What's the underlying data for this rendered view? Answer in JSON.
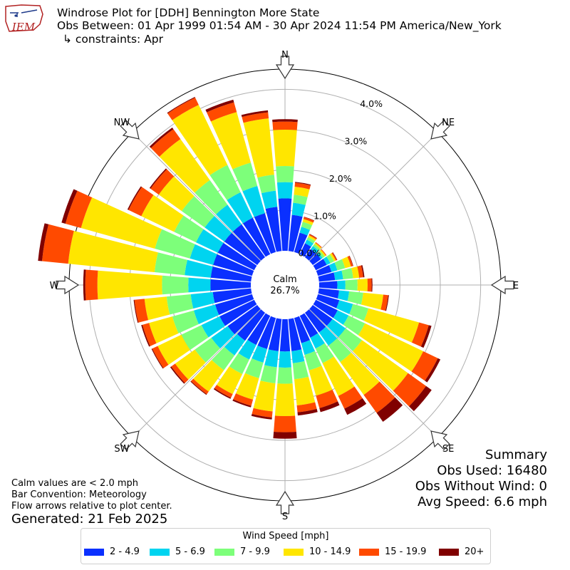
{
  "header": {
    "title": "Windrose Plot for [DDH] Bennington More State",
    "obs_between": "Obs Between: 01 Apr 1999 01:54 AM - 30 Apr 2024 11:54 PM America/New_York",
    "constraints": "↳ constraints: Apr",
    "logo_text": "IEM"
  },
  "notes": {
    "calm_note": "Calm values are < 2.0 mph",
    "bar_convention": "Bar Convention: Meteorology",
    "flow_note": "Flow arrows relative to plot center.",
    "generated": "Generated: 21 Feb 2025"
  },
  "summary": {
    "heading": "Summary",
    "obs_used": "Obs Used: 16480",
    "obs_without_wind": "Obs Without Wind: 0",
    "avg_speed": "Avg Speed: 6.6 mph"
  },
  "chart_data": {
    "type": "windrose",
    "calm_label": "Calm",
    "calm_value": "26.7%",
    "radial_ticks": [
      "0.0%",
      "1.0%",
      "2.0%",
      "3.0%",
      "4.0%"
    ],
    "radial_tick_values": [
      0,
      1,
      2,
      3,
      4
    ],
    "r_max": 4.5,
    "compass_labels": [
      "N",
      "NE",
      "E",
      "SE",
      "S",
      "SW",
      "W",
      "NW"
    ],
    "legend_title": "Wind Speed [mph]",
    "bins": [
      {
        "label": "2 - 4.9",
        "color": "#0a30ff"
      },
      {
        "label": "5 - 6.9",
        "color": "#00d4f0"
      },
      {
        "label": "7 - 9.9",
        "color": "#7dff7a"
      },
      {
        "label": "10 - 14.9",
        "color": "#ffe600"
      },
      {
        "label": "15 - 19.9",
        "color": "#ff4a00"
      },
      {
        "label": "20+",
        "color": "#800000"
      }
    ],
    "directions": [
      "0",
      "10",
      "20",
      "30",
      "40",
      "50",
      "60",
      "70",
      "80",
      "90",
      "100",
      "110",
      "120",
      "130",
      "140",
      "150",
      "160",
      "170",
      "180",
      "190",
      "200",
      "210",
      "220",
      "230",
      "240",
      "250",
      "260",
      "270",
      "280",
      "290",
      "300",
      "310",
      "320",
      "330",
      "340",
      "350"
    ],
    "cumulative_pct": [
      [
        1.3,
        1.7,
        2.1,
        3.0,
        3.2,
        3.26
      ],
      [
        0.9,
        1.2,
        1.4,
        1.6,
        1.7,
        1.72
      ],
      [
        0.5,
        0.65,
        0.78,
        0.85,
        0.9,
        0.91
      ],
      [
        0.3,
        0.4,
        0.47,
        0.52,
        0.55,
        0.56
      ],
      [
        0.25,
        0.34,
        0.4,
        0.44,
        0.46,
        0.46
      ],
      [
        0.25,
        0.3,
        0.36,
        0.4,
        0.42,
        0.42
      ],
      [
        0.3,
        0.4,
        0.5,
        0.55,
        0.58,
        0.59
      ],
      [
        0.35,
        0.5,
        0.7,
        0.85,
        0.9,
        0.91
      ],
      [
        0.4,
        0.6,
        0.85,
        1.0,
        1.1,
        1.13
      ],
      [
        0.45,
        0.65,
        0.95,
        1.2,
        1.3,
        1.32
      ],
      [
        0.5,
        0.75,
        1.1,
        1.6,
        1.72,
        1.74
      ],
      [
        0.55,
        0.9,
        1.3,
        2.6,
        2.85,
        2.92
      ],
      [
        0.6,
        0.9,
        1.35,
        2.95,
        3.35,
        3.42
      ],
      [
        0.6,
        1.0,
        1.5,
        2.9,
        3.45,
        3.62
      ],
      [
        0.6,
        1.0,
        1.5,
        2.5,
        3.05,
        3.32
      ],
      [
        0.6,
        0.9,
        1.3,
        2.2,
        2.55,
        2.72
      ],
      [
        0.65,
        0.95,
        1.35,
        2.0,
        2.32,
        2.42
      ],
      [
        0.8,
        1.1,
        1.5,
        2.15,
        2.32,
        2.4
      ],
      [
        0.8,
        1.2,
        1.6,
        2.4,
        2.8,
        2.96
      ],
      [
        0.8,
        1.2,
        1.6,
        2.3,
        2.45,
        2.5
      ],
      [
        0.8,
        1.15,
        1.55,
        2.1,
        2.26,
        2.3
      ],
      [
        0.8,
        1.2,
        1.6,
        2.15,
        2.25,
        2.28
      ],
      [
        0.85,
        1.3,
        1.75,
        2.4,
        2.48,
        2.5
      ],
      [
        0.9,
        1.4,
        1.9,
        2.5,
        2.62,
        2.65
      ],
      [
        0.95,
        1.45,
        2.0,
        2.65,
        2.8,
        2.82
      ],
      [
        0.95,
        1.5,
        2.05,
        2.65,
        2.82,
        2.85
      ],
      [
        0.95,
        1.5,
        2.1,
        2.65,
        2.9,
        2.92
      ],
      [
        1.0,
        1.55,
        2.2,
        3.8,
        4.1,
        4.15
      ],
      [
        1.0,
        1.65,
        2.4,
        4.55,
        5.2,
        5.3
      ],
      [
        1.0,
        1.6,
        2.5,
        4.4,
        4.8,
        4.9
      ],
      [
        1.0,
        1.6,
        2.2,
        3.1,
        3.45,
        3.48
      ],
      [
        1.0,
        1.6,
        2.3,
        3.0,
        3.25,
        3.28
      ],
      [
        1.0,
        1.6,
        2.35,
        3.6,
        3.9,
        3.95
      ],
      [
        1.0,
        1.7,
        2.45,
        4.1,
        4.3,
        4.32
      ],
      [
        1.0,
        1.7,
        2.3,
        3.6,
        3.85,
        3.92
      ],
      [
        1.1,
        1.5,
        1.9,
        3.3,
        3.45,
        3.5
      ]
    ]
  }
}
